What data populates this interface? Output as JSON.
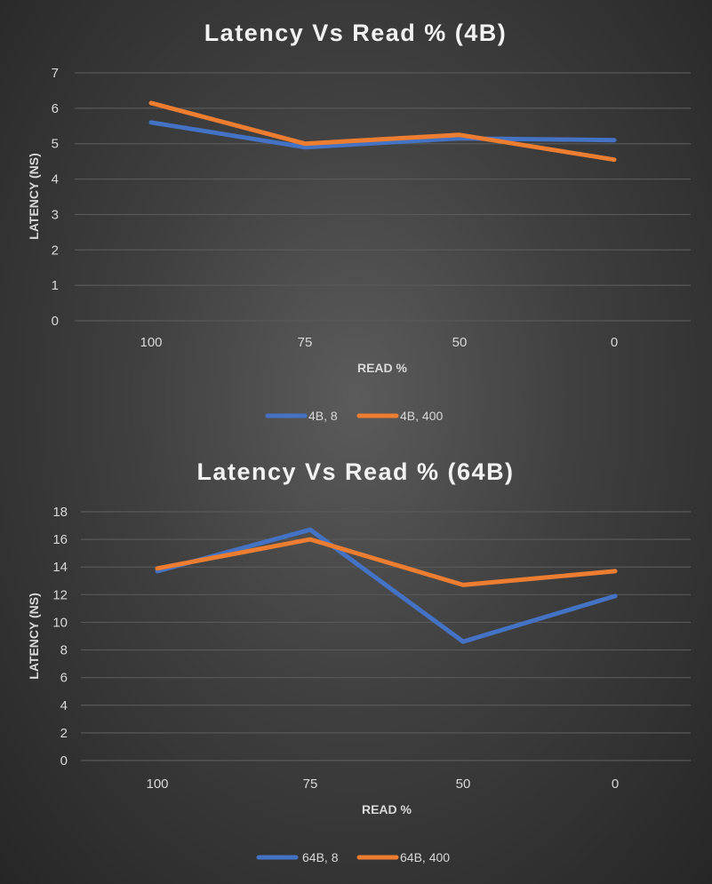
{
  "chart_data": [
    {
      "type": "line",
      "title": "Latency Vs Read % (4B)",
      "xlabel": "READ %",
      "ylabel": "LATENCY (NS)",
      "categories": [
        "100",
        "75",
        "50",
        "0"
      ],
      "ylim": [
        0,
        7
      ],
      "yticks": [
        "0",
        "1",
        "2",
        "3",
        "4",
        "5",
        "6",
        "7"
      ],
      "grid": true,
      "legend_position": "bottom",
      "series": [
        {
          "name": "4B, 8",
          "color": "#4472c4",
          "values": [
            5.6,
            4.9,
            5.15,
            5.1
          ]
        },
        {
          "name": "4B, 400",
          "color": "#ed7d31",
          "values": [
            6.15,
            5.0,
            5.25,
            4.55
          ]
        }
      ]
    },
    {
      "type": "line",
      "title": "Latency Vs Read % (64B)",
      "xlabel": "READ %",
      "ylabel": "LATENCY (NS)",
      "categories": [
        "100",
        "75",
        "50",
        "0"
      ],
      "ylim": [
        0,
        18
      ],
      "yticks": [
        "0",
        "2",
        "4",
        "6",
        "8",
        "10",
        "12",
        "14",
        "16",
        "18"
      ],
      "grid": true,
      "legend_position": "bottom",
      "series": [
        {
          "name": "64B, 8",
          "color": "#4472c4",
          "values": [
            13.7,
            16.7,
            8.6,
            11.9
          ]
        },
        {
          "name": "64B, 400",
          "color": "#ed7d31",
          "values": [
            13.9,
            16.0,
            12.7,
            13.7
          ]
        }
      ]
    }
  ]
}
